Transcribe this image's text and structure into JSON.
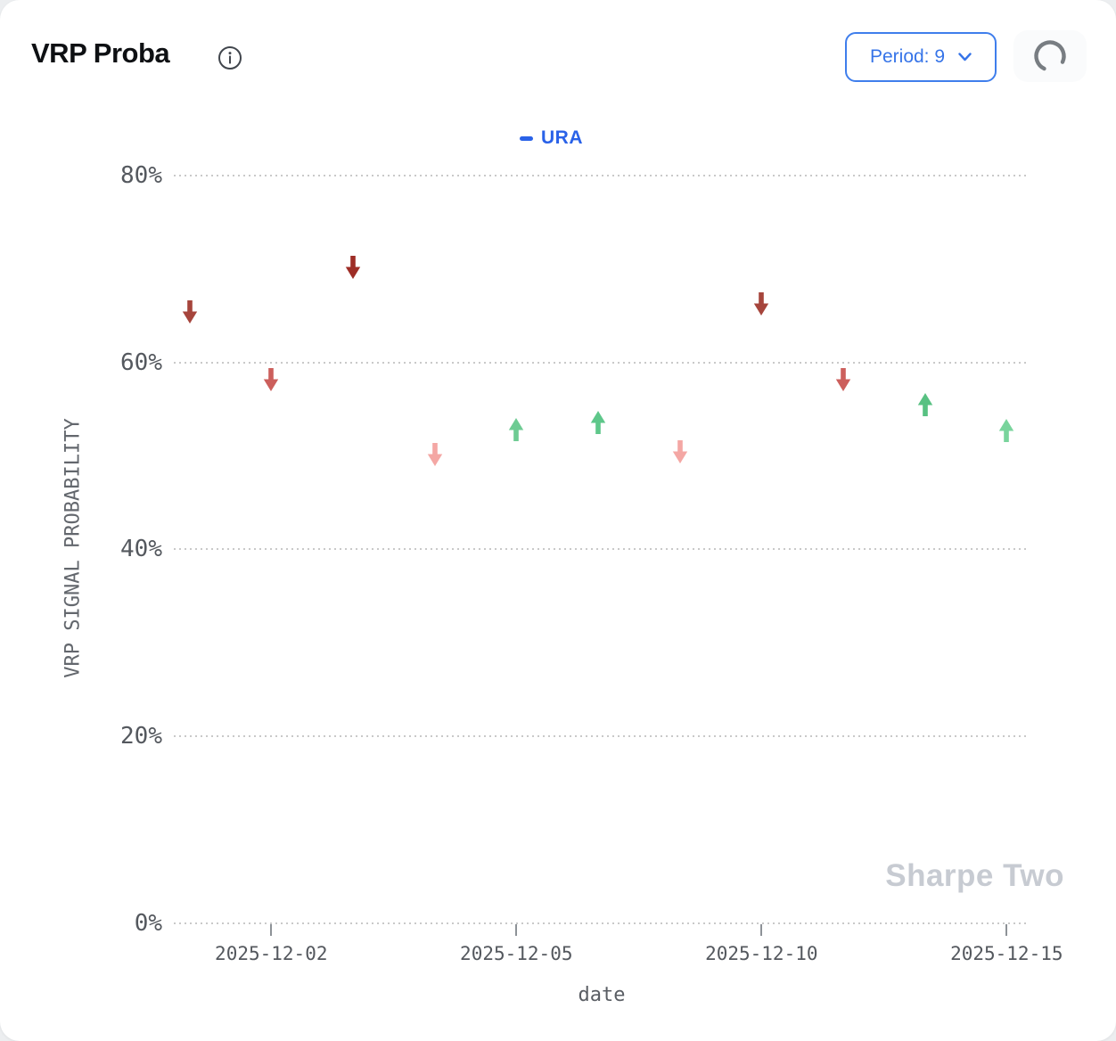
{
  "header": {
    "title": "VRP Proba",
    "period_button": {
      "label": "Period: 9"
    }
  },
  "watermark": "Sharpe Two",
  "colors": {
    "accent_blue": "#3674e8",
    "legend_blue": "#2a62e8",
    "grid_gray": "#c9c9c9",
    "axis_text_gray": "#54585e",
    "watermark_gray": "#c7cbd2",
    "strong_down_red": "#9e2d26",
    "down_red": "#a6453c",
    "mid_down_red": "#cc5f5c",
    "weak_down_pink": "#f4a7a4",
    "up_green": "#5ec78a",
    "strong_up_green": "#58c182",
    "weak_up_green": "#79d49c"
  },
  "chart_data": {
    "type": "scatter",
    "title": "VRP Proba",
    "series_name": "URA",
    "legend": [
      {
        "label": "URA",
        "color": "#2a62e8",
        "position": "top-center"
      }
    ],
    "xlabel": "date",
    "ylabel": "VRP SIGNAL PROBABILITY",
    "ylim": [
      0,
      84
    ],
    "grid": "horizontal-dotted",
    "marker_style": "direction-arrows",
    "ytick_values": [
      0,
      20,
      40,
      60,
      80
    ],
    "ytick_labels": [
      "0%",
      "20%",
      "40%",
      "60%",
      "80%"
    ],
    "xtick_labels": [
      "2025-12-02",
      "2025-12-05",
      "2025-12-10",
      "2025-12-15"
    ],
    "categories": [
      "2025-12-01",
      "2025-12-02",
      "2025-12-03",
      "2025-12-04",
      "2025-12-05",
      "2025-12-08",
      "2025-12-09",
      "2025-12-10",
      "2025-12-11",
      "2025-12-12",
      "2025-12-15"
    ],
    "points": [
      {
        "date": "2025-12-01",
        "probability_pct": 65.4,
        "signal": "down",
        "color": "#a6453c"
      },
      {
        "date": "2025-12-02",
        "probability_pct": 58.2,
        "signal": "down",
        "color": "#cc5f5c"
      },
      {
        "date": "2025-12-03",
        "probability_pct": 70.2,
        "signal": "down",
        "color": "#9e2d26"
      },
      {
        "date": "2025-12-04",
        "probability_pct": 50.2,
        "signal": "down",
        "color": "#f4a7a4"
      },
      {
        "date": "2025-12-05",
        "probability_pct": 52.8,
        "signal": "up",
        "color": "#6ecb93"
      },
      {
        "date": "2025-12-08",
        "probability_pct": 53.6,
        "signal": "up",
        "color": "#5ec78a"
      },
      {
        "date": "2025-12-09",
        "probability_pct": 50.4,
        "signal": "down",
        "color": "#f4a7a4"
      },
      {
        "date": "2025-12-10",
        "probability_pct": 66.3,
        "signal": "down",
        "color": "#a6453c"
      },
      {
        "date": "2025-12-11",
        "probability_pct": 58.2,
        "signal": "down",
        "color": "#cc5f5c"
      },
      {
        "date": "2025-12-12",
        "probability_pct": 55.5,
        "signal": "up",
        "color": "#58c182"
      },
      {
        "date": "2025-12-15",
        "probability_pct": 52.7,
        "signal": "up",
        "color": "#79d49c"
      }
    ]
  }
}
